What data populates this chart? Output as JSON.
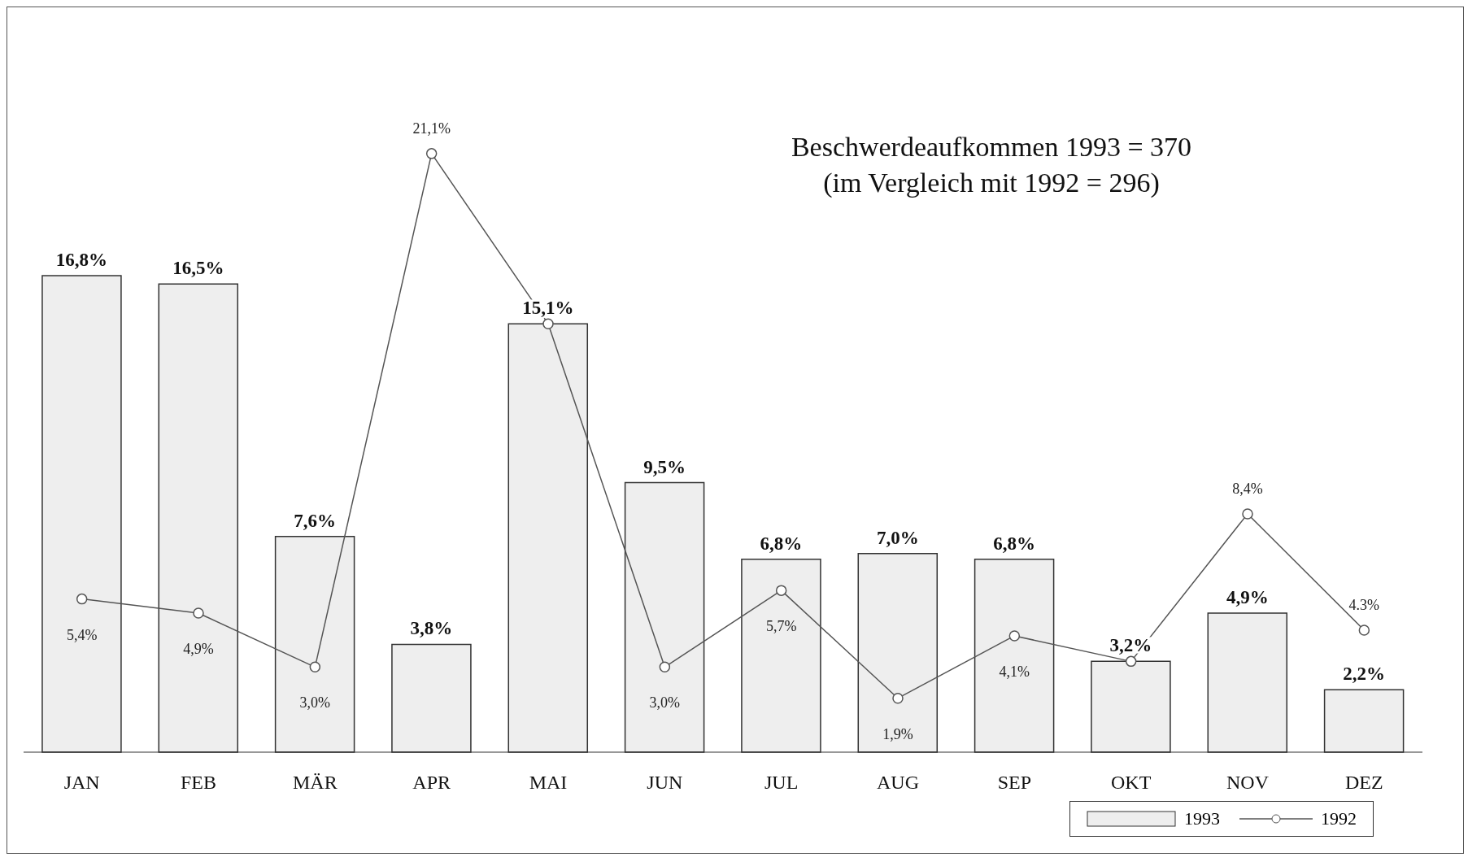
{
  "chart_data": {
    "type": "bar",
    "title": "Beschwerdeaufkommen 1993 = 370",
    "subtitle": "(im Vergleich mit 1992 = 296)",
    "categories": [
      "JAN",
      "FEB",
      "MÄR",
      "APR",
      "MAI",
      "JUN",
      "JUL",
      "AUG",
      "SEP",
      "OKT",
      "NOV",
      "DEZ"
    ],
    "series": [
      {
        "name": "1993",
        "color": "#eeeeee",
        "values": [
          16.8,
          16.5,
          7.6,
          3.8,
          15.1,
          9.5,
          6.8,
          7.0,
          6.8,
          3.2,
          4.9,
          2.2
        ],
        "value_labels": [
          "16,8%",
          "16,5%",
          "7,6%",
          "3,8%",
          "15,1%",
          "9,5%",
          "6,8%",
          "7,0%",
          "6,8%",
          "3,2%",
          "4,9%",
          "2,2%"
        ]
      },
      {
        "name": "1992",
        "type": "line",
        "color": "#555555",
        "values": [
          5.4,
          4.9,
          3.0,
          21.1,
          15.1,
          3.0,
          5.7,
          1.9,
          4.1,
          3.2,
          8.4,
          4.3
        ],
        "value_labels": [
          "5,4%",
          "4,9%",
          "3,0%",
          "21,1%",
          null,
          "3,0%",
          "5,7%",
          "1,9%",
          "4,1%",
          null,
          "8,4%",
          "4.3%"
        ]
      }
    ],
    "marker": "circle",
    "legend": "bottom right"
  }
}
